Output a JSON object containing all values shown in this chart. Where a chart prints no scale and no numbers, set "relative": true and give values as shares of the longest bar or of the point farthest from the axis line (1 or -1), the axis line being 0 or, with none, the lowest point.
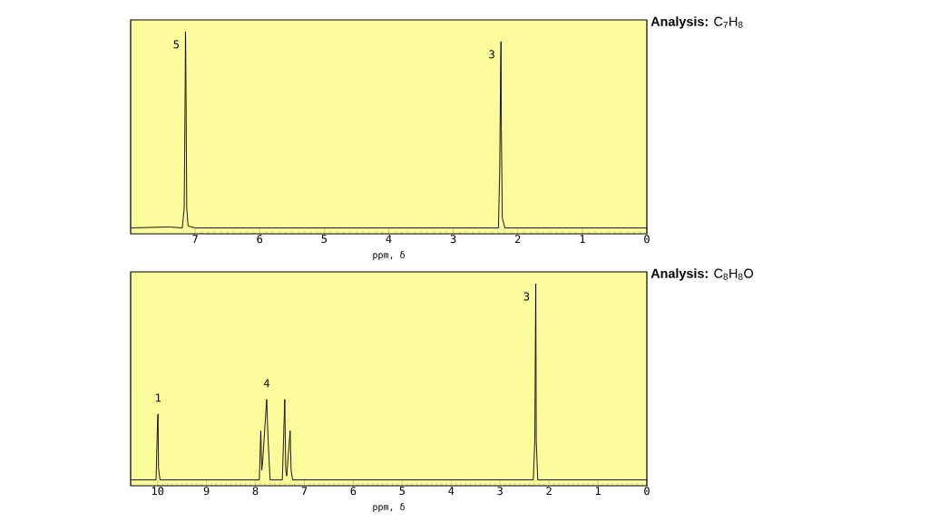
{
  "chart_data": [
    {
      "type": "line",
      "title": "**Analysis:** C$_{7}$H$_{8}$",
      "xlabel": "ppm, δ",
      "relative": true,
      "color": "#000000",
      "x": [
        8,
        7.4,
        7.2,
        7.17,
        7.155,
        7.15,
        7.145,
        7.13,
        7.11,
        7.0,
        2.3,
        2.28,
        2.265,
        2.26,
        2.255,
        2.24,
        2.2,
        0
      ],
      "values": [
        0,
        0.005,
        0,
        0.1,
        0.7,
        1,
        0.86,
        0.1,
        0.01,
        0,
        0,
        0.3,
        0.85,
        0.95,
        0.5,
        0.05,
        0,
        0
      ],
      "xlim": [
        8,
        0
      ],
      "xticks": [
        7,
        6,
        5,
        4,
        3,
        2,
        1,
        0
      ],
      "annotations": [
        {
          "text": "5",
          "x": 7.15,
          "y": 1
        },
        {
          "text": "3",
          "x": 2.26,
          "y": 0.95
        }
      ]
    },
    {
      "type": "line",
      "title": "**Analysis:** C$_{8}$H$_{8}$O",
      "xlabel": "ppm, δ",
      "relative": true,
      "color": "#000000",
      "x": [
        10.55,
        10.03,
        10.0,
        9.99,
        9.98,
        9.95,
        7.92,
        7.89,
        7.87,
        7.85,
        7.77,
        7.74,
        7.7,
        7.45,
        7.4,
        7.38,
        7.36,
        7.29,
        7.27,
        7.24,
        2.32,
        2.29,
        2.27,
        2.26,
        2.23,
        0
      ],
      "values": [
        0,
        0,
        0.3,
        0.336,
        0.06,
        0,
        0,
        0.25,
        0.05,
        0.1,
        0.41,
        0.2,
        0,
        0,
        0.41,
        0.05,
        0.02,
        0.25,
        0.05,
        0,
        0,
        0.2,
        1,
        0.2,
        0,
        0
      ],
      "xlim": [
        10.55,
        0
      ],
      "xticks": [
        10,
        9,
        8,
        7,
        6,
        5,
        4,
        3,
        2,
        1,
        0
      ],
      "annotations": [
        {
          "text": "1",
          "x": 9.99,
          "y": 0.336
        },
        {
          "text": "4",
          "x": 7.77,
          "y": 0.41
        },
        {
          "text": "3",
          "x": 2.27,
          "y": 1
        }
      ]
    }
  ]
}
